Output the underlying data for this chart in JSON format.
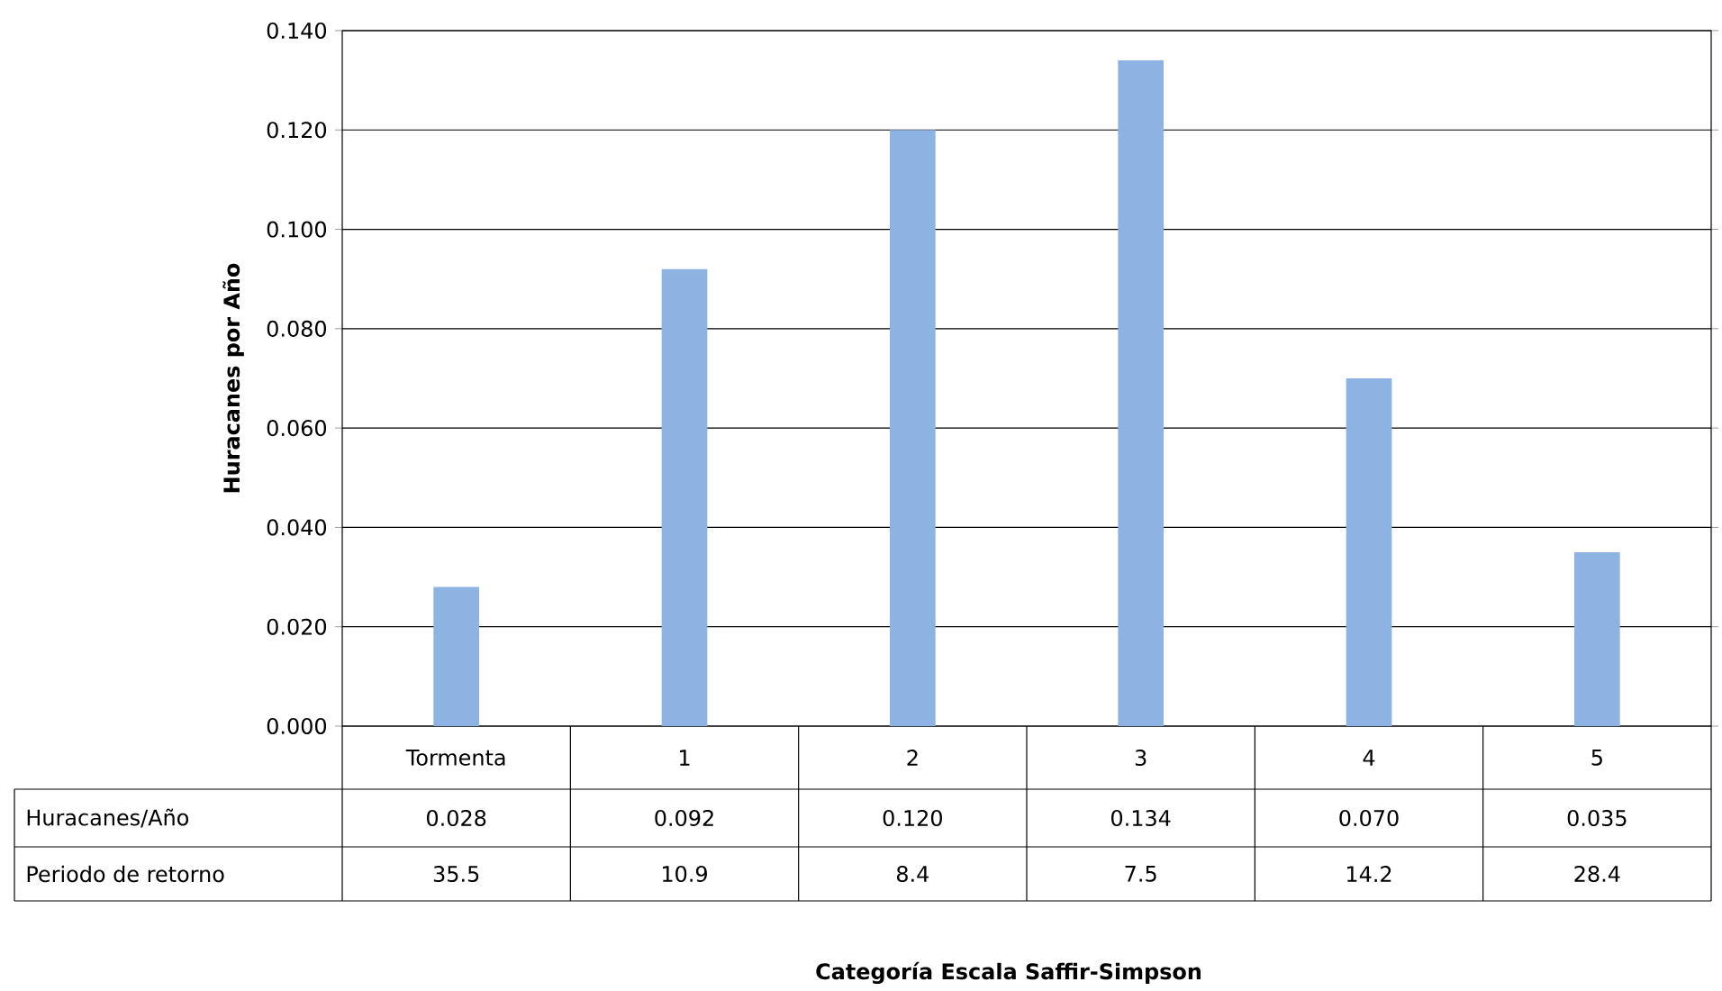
{
  "chart_data": {
    "type": "bar",
    "ylabel": "Huracanes por Año",
    "categories": [
      "Tormenta",
      "1",
      "2",
      "3",
      "4",
      "5"
    ],
    "series": [
      {
        "name": "Huracanes/Año",
        "color": "#8db3e2",
        "values": [
          0.028,
          0.092,
          0.12,
          0.134,
          0.07,
          0.035
        ],
        "value_labels": [
          "0.028",
          "0.092",
          "0.120",
          "0.134",
          "0.070",
          "0.035"
        ]
      }
    ],
    "annotations": [
      "Periodo de retorno",
      "35.5",
      "10.9",
      "8.4",
      "7.5",
      "14.2",
      "28.4",
      "Categoría Escala Saffir-Simpson"
    ],
    "ylim": [
      0,
      0.14
    ],
    "yticks": [
      {
        "value": 0,
        "label": "0.000"
      },
      {
        "value": 0.02,
        "label": "0.020"
      },
      {
        "value": 0.04,
        "label": "0.040"
      },
      {
        "value": 0.06,
        "label": "0.060"
      },
      {
        "value": 0.08,
        "label": "0.080"
      },
      {
        "value": 0.1,
        "label": "0.100"
      },
      {
        "value": 0.12,
        "label": "0.120"
      },
      {
        "value": 0.14,
        "label": "0.140"
      }
    ],
    "grid": "y"
  }
}
